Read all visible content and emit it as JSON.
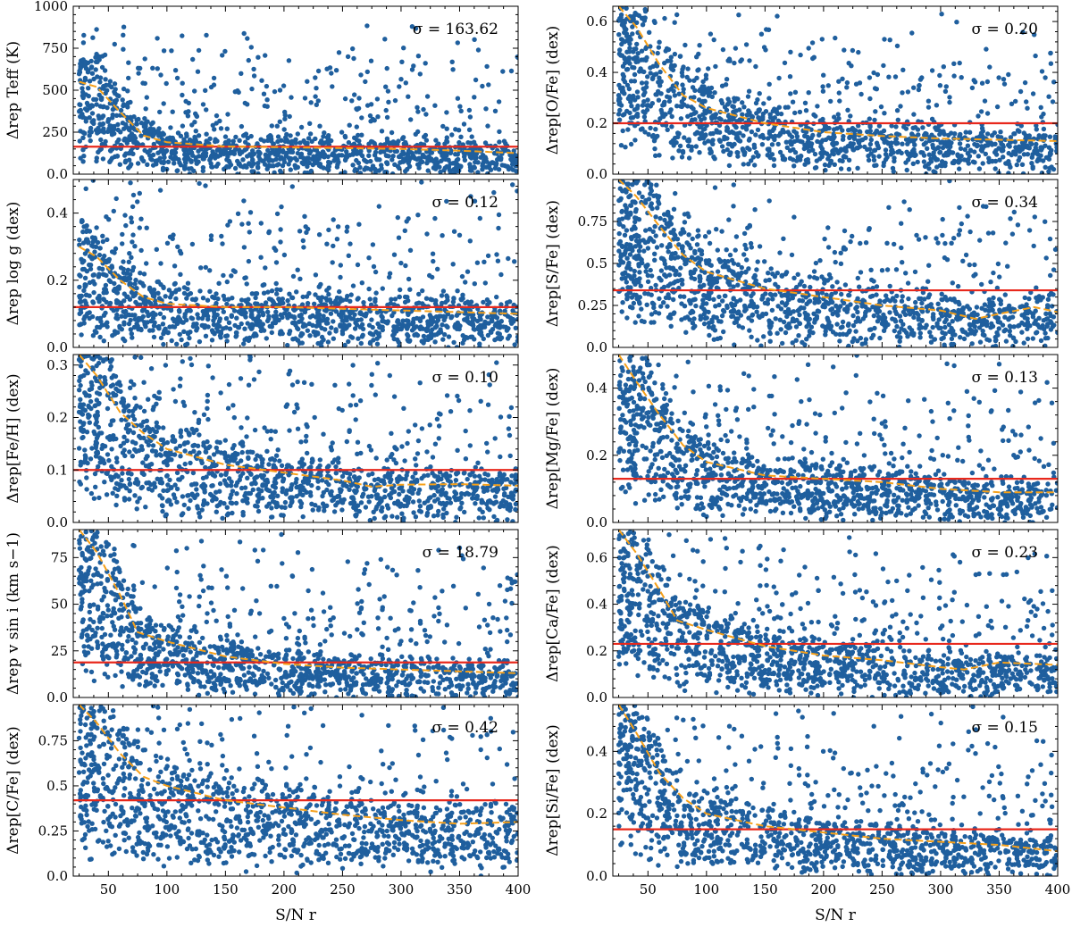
{
  "chart_data": [
    {
      "type": "scatter",
      "ylabel": "Δrep Teff (K)",
      "ylim": [
        0,
        1000
      ],
      "yticks": [
        0,
        250,
        500,
        750,
        1000
      ],
      "sigma_label": "σ = 163.62",
      "sigma": 163.62,
      "trend": {
        "x": [
          25,
          40,
          60,
          80,
          100,
          150,
          200,
          250,
          300,
          350,
          400
        ],
        "y": [
          550,
          520,
          370,
          230,
          190,
          165,
          160,
          155,
          150,
          140,
          125
        ]
      },
      "noise_scale": 260,
      "seed": 11
    },
    {
      "type": "scatter",
      "ylabel": "Δrep[O/Fe] (dex)",
      "ylim": [
        0,
        0.66
      ],
      "yticks": [
        0,
        0.2,
        0.4,
        0.6
      ],
      "sigma_label": "σ = 0.20",
      "sigma": 0.2,
      "trend": {
        "x": [
          25,
          40,
          60,
          80,
          100,
          150,
          200,
          250,
          300,
          350,
          400
        ],
        "y": [
          0.66,
          0.58,
          0.43,
          0.31,
          0.26,
          0.2,
          0.165,
          0.15,
          0.14,
          0.135,
          0.13
        ],
        "cap": 0.66
      },
      "noise_scale": 0.18,
      "seed": 12
    },
    {
      "type": "scatter",
      "ylabel": "Δrep log g (dex)",
      "ylim": [
        0,
        0.5
      ],
      "yticks": [
        0,
        0.2,
        0.4
      ],
      "sigma_label": "σ = 0.12",
      "sigma": 0.12,
      "trend": {
        "x": [
          25,
          40,
          60,
          80,
          100,
          150,
          200,
          250,
          300,
          350,
          400
        ],
        "y": [
          0.3,
          0.27,
          0.2,
          0.15,
          0.13,
          0.12,
          0.12,
          0.115,
          0.11,
          0.105,
          0.1
        ]
      },
      "noise_scale": 0.13,
      "seed": 13
    },
    {
      "type": "scatter",
      "ylabel": "Δrep[S/Fe] (dex)",
      "ylim": [
        0,
        1
      ],
      "yticks": [
        0,
        0.25,
        0.5,
        0.75
      ],
      "sigma_label": "σ = 0.34",
      "sigma": 0.34,
      "trend": {
        "x": [
          25,
          40,
          60,
          80,
          100,
          150,
          200,
          250,
          300,
          330,
          350,
          380,
          400
        ],
        "y": [
          1.0,
          0.9,
          0.72,
          0.55,
          0.45,
          0.35,
          0.3,
          0.25,
          0.22,
          0.17,
          0.2,
          0.24,
          0.21
        ],
        "cap": 1.0
      },
      "noise_scale": 0.32,
      "seed": 14
    },
    {
      "type": "scatter",
      "ylabel": "Δrep[Fe/H] (dex)",
      "ylim": [
        0,
        0.32
      ],
      "yticks": [
        0,
        0.1,
        0.2,
        0.3
      ],
      "sigma_label": "σ = 0.10",
      "sigma": 0.1,
      "trend": {
        "x": [
          25,
          40,
          60,
          80,
          100,
          150,
          200,
          250,
          275,
          300,
          350,
          400
        ],
        "y": [
          0.32,
          0.28,
          0.21,
          0.17,
          0.14,
          0.11,
          0.095,
          0.08,
          0.068,
          0.072,
          0.073,
          0.07
        ],
        "cap": 0.32
      },
      "noise_scale": 0.09,
      "seed": 15
    },
    {
      "type": "scatter",
      "ylabel": "Δrep[Mg/Fe] (dex)",
      "ylim": [
        0,
        0.5
      ],
      "yticks": [
        0,
        0.2,
        0.4
      ],
      "sigma_label": "σ = 0.13",
      "sigma": 0.13,
      "trend": {
        "x": [
          25,
          40,
          60,
          80,
          100,
          150,
          200,
          250,
          300,
          350,
          400
        ],
        "y": [
          0.5,
          0.42,
          0.32,
          0.23,
          0.18,
          0.14,
          0.13,
          0.12,
          0.1,
          0.09,
          0.09
        ],
        "cap": 0.5
      },
      "noise_scale": 0.14,
      "seed": 16
    },
    {
      "type": "scatter",
      "ylabel": "Δrep v sin i (km s−1)",
      "ylim": [
        0,
        90
      ],
      "yticks": [
        0,
        25,
        50,
        75
      ],
      "sigma_label": "σ = 18.79",
      "sigma": 18.79,
      "trend": {
        "x": [
          25,
          40,
          60,
          75,
          100,
          150,
          200,
          250,
          300,
          350,
          400
        ],
        "y": [
          90,
          78,
          55,
          35,
          30,
          22,
          18,
          16,
          15,
          14,
          13
        ],
        "cap": 90
      },
      "noise_scale": 22,
      "seed": 17
    },
    {
      "type": "scatter",
      "ylabel": "Δrep[Ca/Fe] (dex)",
      "ylim": [
        0,
        0.72
      ],
      "yticks": [
        0,
        0.2,
        0.4,
        0.6
      ],
      "sigma_label": "σ = 0.23",
      "sigma": 0.23,
      "trend": {
        "x": [
          25,
          40,
          60,
          75,
          100,
          150,
          200,
          250,
          300,
          320,
          350,
          400
        ],
        "y": [
          0.72,
          0.62,
          0.46,
          0.33,
          0.29,
          0.22,
          0.18,
          0.16,
          0.13,
          0.12,
          0.15,
          0.14
        ],
        "cap": 0.72
      },
      "noise_scale": 0.2,
      "seed": 18
    },
    {
      "type": "scatter",
      "ylabel": "Δrep[C/Fe] (dex)",
      "ylim": [
        0,
        0.95
      ],
      "yticks": [
        0,
        0.25,
        0.5,
        0.75
      ],
      "sigma_label": "σ = 0.42",
      "sigma": 0.42,
      "trend": {
        "x": [
          25,
          40,
          60,
          80,
          100,
          150,
          200,
          250,
          300,
          350,
          400
        ],
        "y": [
          0.95,
          0.85,
          0.68,
          0.55,
          0.5,
          0.42,
          0.38,
          0.34,
          0.31,
          0.29,
          0.3
        ],
        "cap": 0.95
      },
      "noise_scale": 0.3,
      "seed": 19
    },
    {
      "type": "scatter",
      "ylabel": "Δrep[Si/Fe] (dex)",
      "ylim": [
        0,
        0.55
      ],
      "yticks": [
        0,
        0.2,
        0.4
      ],
      "sigma_label": "σ = 0.15",
      "sigma": 0.15,
      "trend": {
        "x": [
          25,
          40,
          60,
          80,
          100,
          150,
          200,
          250,
          300,
          350,
          400
        ],
        "y": [
          0.55,
          0.46,
          0.33,
          0.25,
          0.2,
          0.16,
          0.14,
          0.12,
          0.11,
          0.1,
          0.08
        ],
        "cap": 0.55
      },
      "noise_scale": 0.12,
      "seed": 20
    }
  ],
  "x_axis": {
    "label": "S/N r",
    "xlim": [
      20,
      400
    ],
    "ticks": [
      50,
      100,
      150,
      200,
      250,
      300,
      350,
      400
    ]
  },
  "colors": {
    "points": "#1f5f9e",
    "sigma_line": "#e8281c",
    "trend": "#f5a01a",
    "axes": "#000000"
  }
}
